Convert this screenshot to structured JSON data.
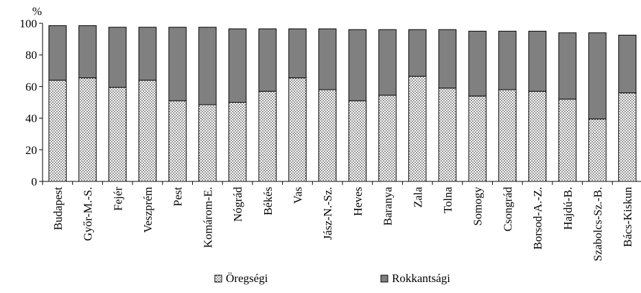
{
  "chart_data": {
    "type": "bar",
    "stacked": true,
    "ylabel": "%",
    "ylim": [
      0,
      100
    ],
    "yticks": [
      0,
      20,
      40,
      60,
      80,
      100
    ],
    "grid": false,
    "legend_position": "bottom",
    "categories": [
      "Budapest",
      "Győr-M.-S.",
      "Fejér",
      "Veszprém",
      "Pest",
      "Komárom-E.",
      "Nógrád",
      "Békés",
      "Vas",
      "Jász-N.-Sz.",
      "Heves",
      "Baranya",
      "Zala",
      "Tolna",
      "Somogy",
      "Csongrád",
      "Borsod-A.-Z.",
      "Hajdú-B.",
      "Szabolcs-Sz.-B.",
      "Bács-Kiskun"
    ],
    "series": [
      {
        "name": "Öregségi",
        "color": "#ffffff",
        "pattern": "dots",
        "values": [
          64,
          65.5,
          59.5,
          64,
          51,
          48.5,
          50,
          57,
          65.5,
          58,
          51,
          54.5,
          66.5,
          59,
          54,
          58,
          57,
          52,
          39.5,
          56
        ]
      },
      {
        "name": "Rokkantsági",
        "color": "#808080",
        "pattern": "solid",
        "values": [
          34.5,
          33,
          38,
          33.5,
          46.5,
          49,
          46.5,
          39.5,
          31,
          38.5,
          45,
          41.5,
          29.5,
          37,
          41,
          37,
          38,
          42,
          54.5,
          36.5
        ]
      }
    ]
  }
}
